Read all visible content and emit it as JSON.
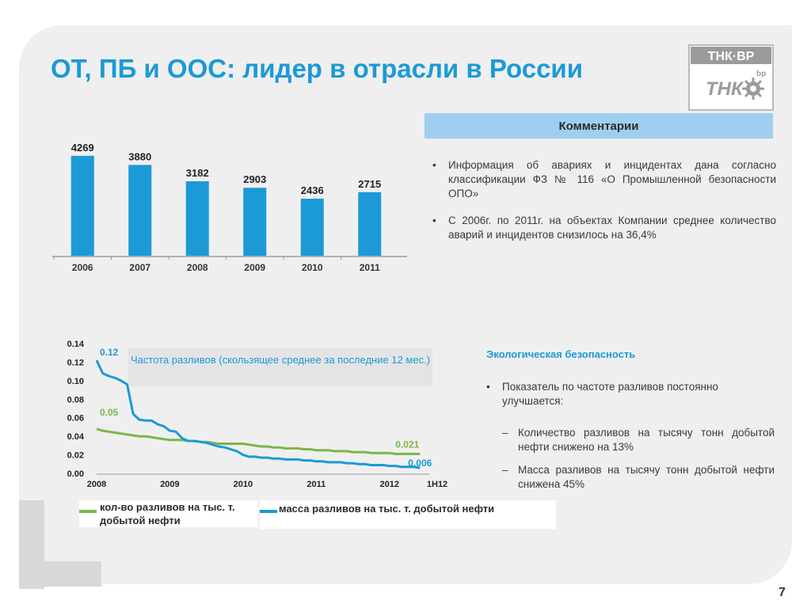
{
  "slide": {
    "title": "ОТ, ПБ и ООС: лидер в отрасли в России",
    "page_number": "7",
    "logo": {
      "top_text": "ТНК·ВР",
      "mid_text": "ТНК",
      "bp_text": "bp"
    }
  },
  "comments": {
    "header": "Комментарии",
    "bullets": [
      "Информация об авариях и инцидентах дана согласно классификации ФЗ № 116 «О Промышленной безопасности ОПО»",
      "С 2006г. по 2011г. на объектах Компании среднее количество аварий и инцидентов снизилось на 36,4%"
    ]
  },
  "ecology": {
    "title": "Экологическая безопасность",
    "bullet": "Показатель по частоте разливов постоянно улучшается:",
    "subs": [
      "Количество разливов на тысячу тонн добытой нефти снижено на 13%",
      "Масса разливов на тысячу тонн добытой нефти снижена 45%"
    ]
  },
  "colors": {
    "accent": "#1b9ad6",
    "green": "#7ab648",
    "panel": "#efeff0"
  },
  "chart_data": [
    {
      "type": "bar",
      "categories": [
        "2006",
        "2007",
        "2008",
        "2009",
        "2010",
        "2011"
      ],
      "values": [
        4269,
        3880,
        3182,
        2903,
        2436,
        2715
      ],
      "ylim": [
        0,
        4500
      ]
    },
    {
      "type": "line",
      "title": "Частота разливов  (скользящее среднее за последние 12 мес.)",
      "x_ticks": [
        "2008",
        "2009",
        "2010",
        "2011",
        "2012",
        "1H12"
      ],
      "y_ticks": [
        "0.14",
        "0.12",
        "0.10",
        "0.08",
        "0.06",
        "0.04",
        "0.02",
        "0.00"
      ],
      "ylim": [
        0,
        0.14
      ],
      "xlim": [
        0,
        54
      ],
      "series": [
        {
          "name": "кол-во разливов на тыс. т. добытой нефти",
          "color": "#7ab648",
          "start_label": "0.05",
          "end_label": "0.021",
          "x": [
            0,
            1,
            2,
            3,
            4,
            5,
            6,
            7,
            8,
            9,
            10,
            11,
            12,
            13,
            14,
            15,
            16,
            17,
            18,
            19,
            20,
            21,
            22,
            23,
            24,
            25,
            26,
            27,
            28,
            29,
            30,
            31,
            32,
            33,
            34,
            35,
            36,
            37,
            38,
            39,
            40,
            41,
            42,
            43,
            44,
            45,
            46,
            47,
            48,
            49,
            50,
            51,
            52,
            53
          ],
          "values": [
            0.048,
            0.046,
            0.045,
            0.044,
            0.043,
            0.042,
            0.041,
            0.04,
            0.04,
            0.039,
            0.038,
            0.037,
            0.036,
            0.036,
            0.036,
            0.035,
            0.035,
            0.034,
            0.034,
            0.033,
            0.032,
            0.032,
            0.032,
            0.032,
            0.032,
            0.031,
            0.03,
            0.029,
            0.029,
            0.028,
            0.028,
            0.027,
            0.027,
            0.027,
            0.026,
            0.026,
            0.025,
            0.025,
            0.025,
            0.024,
            0.024,
            0.024,
            0.023,
            0.023,
            0.023,
            0.022,
            0.022,
            0.022,
            0.022,
            0.021,
            0.021,
            0.021,
            0.021,
            0.021
          ]
        },
        {
          "name": "масса разливов на тыс. т. добытой нефти",
          "color": "#1b9ad6",
          "start_label": "0.12",
          "end_label": "0.006",
          "x": [
            0,
            1,
            2,
            3,
            4,
            5,
            6,
            7,
            8,
            9,
            10,
            11,
            12,
            13,
            14,
            15,
            16,
            17,
            18,
            19,
            20,
            21,
            22,
            23,
            24,
            25,
            26,
            27,
            28,
            29,
            30,
            31,
            32,
            33,
            34,
            35,
            36,
            37,
            38,
            39,
            40,
            41,
            42,
            43,
            44,
            45,
            46,
            47,
            48,
            49,
            50,
            51,
            52,
            53
          ],
          "values": [
            0.122,
            0.108,
            0.105,
            0.103,
            0.1,
            0.096,
            0.064,
            0.058,
            0.057,
            0.057,
            0.053,
            0.051,
            0.046,
            0.045,
            0.038,
            0.035,
            0.035,
            0.034,
            0.033,
            0.031,
            0.029,
            0.028,
            0.026,
            0.024,
            0.02,
            0.018,
            0.018,
            0.017,
            0.017,
            0.016,
            0.016,
            0.015,
            0.015,
            0.015,
            0.014,
            0.014,
            0.013,
            0.013,
            0.012,
            0.012,
            0.012,
            0.011,
            0.011,
            0.01,
            0.01,
            0.009,
            0.009,
            0.009,
            0.008,
            0.008,
            0.007,
            0.007,
            0.007,
            0.006
          ]
        }
      ]
    }
  ]
}
